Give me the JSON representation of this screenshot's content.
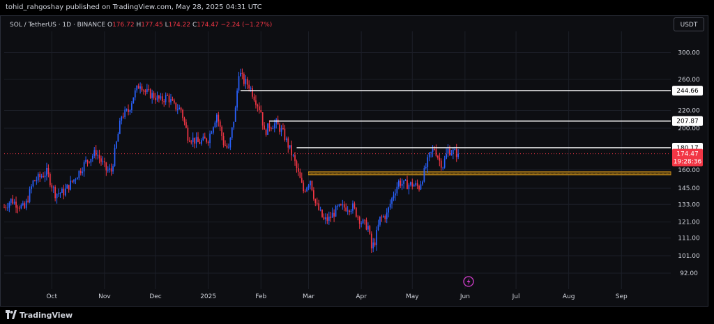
{
  "header": {
    "published_by": "tohid_rahgoshay published on TradingView.com, May 28, 2025 04:31 UTC"
  },
  "legend": {
    "symbol": "SOL / TetherUS · 1D · BINANCE",
    "open_label": "O",
    "open": "176.72",
    "high_label": "H",
    "high": "177.45",
    "low_label": "L",
    "low": "174.22",
    "close_label": "C",
    "close": "174.47",
    "change": "−2.24 (−1.27%)"
  },
  "currency_button": "USDT",
  "footer": {
    "brand": "TradingView"
  },
  "colors": {
    "up": "#2962ff",
    "down": "#f23645",
    "background": "#0d0e12",
    "grid": "#1c1f28",
    "level_line": "#ffffff",
    "support_zone": "#c58b18",
    "current_price": "#f23645"
  },
  "chart_data": {
    "type": "candlestick",
    "scale": "log",
    "ylim": [
      86,
      330
    ],
    "x_range": [
      "2024-09-03",
      "2025-09-30"
    ],
    "y_ticks": [
      "300.00",
      "260.00",
      "220.00",
      "200.00",
      "160.00",
      "145.00",
      "133.00",
      "121.00",
      "111.00",
      "101.00",
      "92.00"
    ],
    "y_tick_values": [
      300,
      260,
      220,
      200,
      160,
      145,
      133,
      121,
      111,
      101,
      92
    ],
    "x_ticks": [
      {
        "label": "Oct",
        "date": "2024-10-01"
      },
      {
        "label": "Nov",
        "date": "2024-11-01"
      },
      {
        "label": "Dec",
        "date": "2024-12-01"
      },
      {
        "label": "2025",
        "date": "2025-01-01"
      },
      {
        "label": "Feb",
        "date": "2025-02-01"
      },
      {
        "label": "Mar",
        "date": "2025-03-01"
      },
      {
        "label": "Apr",
        "date": "2025-04-01"
      },
      {
        "label": "May",
        "date": "2025-05-01"
      },
      {
        "label": "Jun",
        "date": "2025-06-01"
      },
      {
        "label": "Jul",
        "date": "2025-07-01"
      },
      {
        "label": "Aug",
        "date": "2025-08-01"
      },
      {
        "label": "Sep",
        "date": "2025-09-01"
      }
    ],
    "resistance_levels": [
      {
        "value": 244.66,
        "label": "244.66",
        "from": "2025-01-20"
      },
      {
        "value": 207.87,
        "label": "207.87",
        "from": "2025-02-06"
      },
      {
        "value": 180.17,
        "label": "180.17",
        "from": "2025-02-22"
      }
    ],
    "support_zone": {
      "low": 155.8,
      "high": 158.4,
      "from": "2025-03-01"
    },
    "current_price": {
      "value": 174.47,
      "label": "174.47",
      "countdown": "19:28:36"
    },
    "anchors": [
      [
        "2024-09-03",
        131
      ],
      [
        "2024-09-07",
        136
      ],
      [
        "2024-09-15",
        130
      ],
      [
        "2024-09-20",
        150
      ],
      [
        "2024-09-28",
        158
      ],
      [
        "2024-10-03",
        141
      ],
      [
        "2024-10-08",
        142
      ],
      [
        "2024-10-14",
        152
      ],
      [
        "2024-10-21",
        167
      ],
      [
        "2024-10-27",
        176
      ],
      [
        "2024-11-02",
        160
      ],
      [
        "2024-11-05",
        159
      ],
      [
        "2024-11-11",
        214
      ],
      [
        "2024-11-15",
        219
      ],
      [
        "2024-11-18",
        238
      ],
      [
        "2024-11-22",
        255
      ],
      [
        "2024-11-25",
        243
      ],
      [
        "2024-11-30",
        238
      ],
      [
        "2024-12-04",
        232
      ],
      [
        "2024-12-08",
        237
      ],
      [
        "2024-12-12",
        225
      ],
      [
        "2024-12-16",
        221
      ],
      [
        "2024-12-20",
        192
      ],
      [
        "2024-12-26",
        185
      ],
      [
        "2025-01-01",
        189
      ],
      [
        "2025-01-06",
        216
      ],
      [
        "2025-01-10",
        185
      ],
      [
        "2025-01-13",
        178
      ],
      [
        "2025-01-17",
        221
      ],
      [
        "2025-01-19",
        271
      ],
      [
        "2025-01-22",
        257
      ],
      [
        "2025-01-25",
        252
      ],
      [
        "2025-01-28",
        237
      ],
      [
        "2025-02-01",
        219
      ],
      [
        "2025-02-03",
        195
      ],
      [
        "2025-02-06",
        203
      ],
      [
        "2025-02-10",
        205
      ],
      [
        "2025-02-14",
        195
      ],
      [
        "2025-02-20",
        171
      ],
      [
        "2025-02-26",
        143
      ],
      [
        "2025-03-02",
        152
      ],
      [
        "2025-03-05",
        134
      ],
      [
        "2025-03-10",
        122
      ],
      [
        "2025-03-13",
        123
      ],
      [
        "2025-03-18",
        130
      ],
      [
        "2025-03-22",
        131
      ],
      [
        "2025-03-27",
        131
      ],
      [
        "2025-04-01",
        121
      ],
      [
        "2025-04-05",
        118
      ],
      [
        "2025-04-07",
        105
      ],
      [
        "2025-04-09",
        109
      ],
      [
        "2025-04-12",
        123
      ],
      [
        "2025-04-16",
        126
      ],
      [
        "2025-04-20",
        141
      ],
      [
        "2025-04-23",
        150
      ],
      [
        "2025-04-26",
        148
      ],
      [
        "2025-05-01",
        148
      ],
      [
        "2025-05-05",
        146
      ],
      [
        "2025-05-08",
        158
      ],
      [
        "2025-05-11",
        172
      ],
      [
        "2025-05-14",
        180
      ],
      [
        "2025-05-17",
        168
      ],
      [
        "2025-05-19",
        164
      ],
      [
        "2025-05-22",
        178
      ],
      [
        "2025-05-25",
        176
      ],
      [
        "2025-05-28",
        174.47
      ]
    ]
  }
}
